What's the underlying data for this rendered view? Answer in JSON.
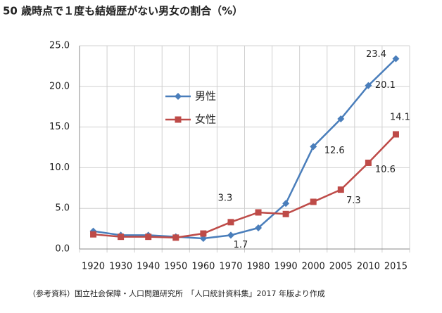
{
  "chart_data": {
    "type": "line",
    "title": "50 歳時点で１度も結婚歴がない男女の割合（%）",
    "note": "（参考資料）国立社会保障・人口問題研究所　「人口統計資料集」2017 年版より作成",
    "categories": [
      "1920",
      "1930",
      "1940",
      "1950",
      "1960",
      "1970",
      "1980",
      "1990",
      "2000",
      "2005",
      "2010",
      "2015"
    ],
    "series": [
      {
        "name": "男性",
        "color": "#4a7ebb",
        "marker": "diamond",
        "values": [
          2.2,
          1.7,
          1.7,
          1.5,
          1.3,
          1.7,
          2.6,
          5.6,
          12.6,
          16.0,
          20.1,
          23.4
        ],
        "value_labels": [
          null,
          null,
          null,
          null,
          null,
          "1.7",
          null,
          null,
          "12.6",
          null,
          "20.1",
          "23.4"
        ]
      },
      {
        "name": "女性",
        "color": "#be4b48",
        "marker": "square",
        "values": [
          1.8,
          1.5,
          1.5,
          1.4,
          1.9,
          3.3,
          4.5,
          4.3,
          5.8,
          7.3,
          10.6,
          14.1
        ],
        "value_labels": [
          null,
          null,
          null,
          null,
          null,
          "3.3",
          null,
          null,
          null,
          "7.3",
          "10.6",
          "14.1"
        ]
      }
    ],
    "ylim": [
      0,
      25
    ],
    "yticks": [
      {
        "value": 0,
        "label": "0.0"
      },
      {
        "value": 5,
        "label": "5.0"
      },
      {
        "value": 10,
        "label": "10.0"
      },
      {
        "value": 15,
        "label": "15.0"
      },
      {
        "value": 20,
        "label": "20.0"
      },
      {
        "value": 25,
        "label": "25.0"
      }
    ],
    "grid": true
  }
}
